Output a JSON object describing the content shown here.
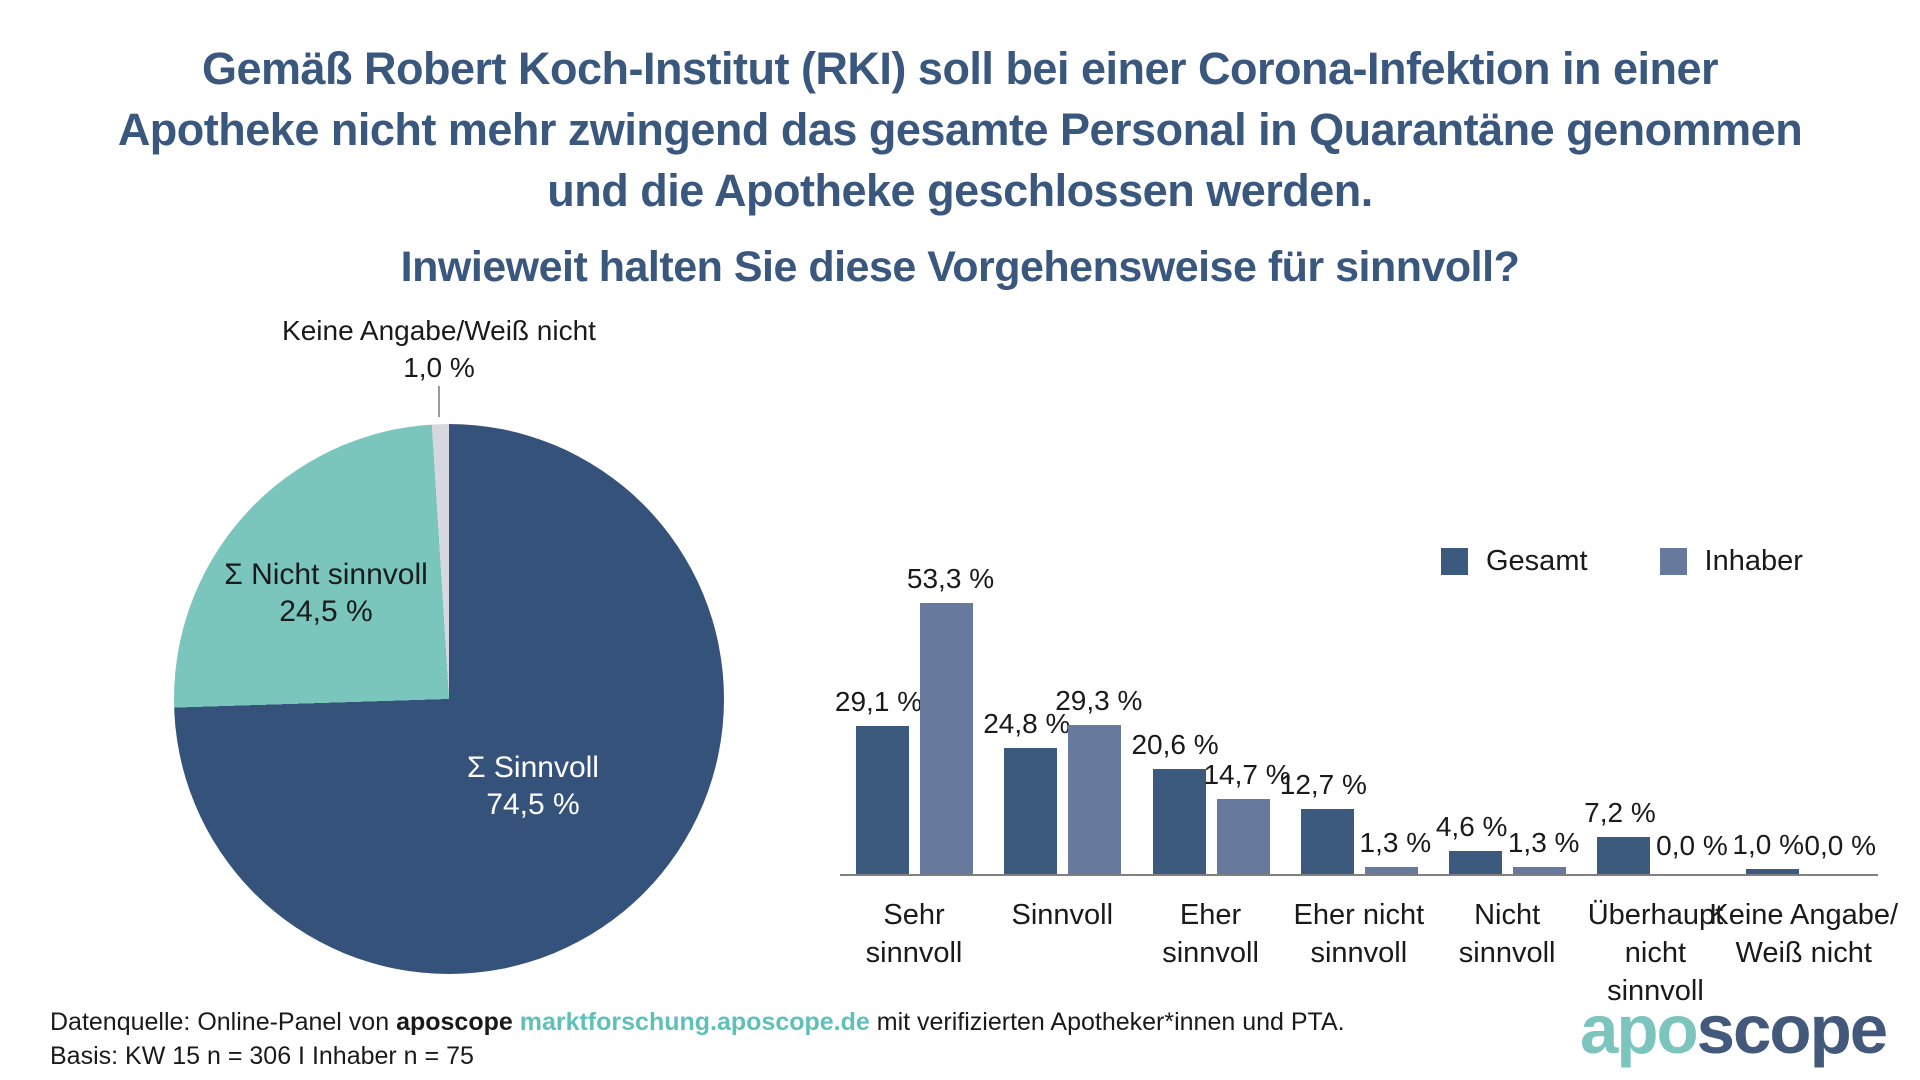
{
  "title": {
    "lines": [
      "Gemäß Robert Koch-Institut (RKI) soll bei einer Corona-Infektion in einer",
      "Apotheke nicht mehr zwingend das gesamte Personal in Quarantäne genommen",
      "und die Apotheke geschlossen werden."
    ]
  },
  "subtitle": "Inwieweit halten Sie diese Vorgehensweise für sinnvoll?",
  "colors": {
    "title_blue": "#3A577D",
    "pie_dark_blue": "#35527A",
    "pie_teal": "#7AC6BD",
    "pie_gray": "#D7D7DF",
    "bar_gesamt": "#3C5A7E",
    "bar_inhaber": "#67799C",
    "axis_gray": "#808080",
    "footer_link_teal": "#5FC0BA",
    "logo_teal": "#7CC5BF",
    "logo_blue": "#43597C"
  },
  "chart_data": [
    {
      "type": "pie",
      "start_angle_deg": 0,
      "direction": "clockwise",
      "slices": [
        {
          "label": "Σ Sinnvoll",
          "value": 74.5,
          "display": "74,5 %",
          "color": "#35527A",
          "text_color": "#ffffff"
        },
        {
          "label": "Σ Nicht sinnvoll",
          "value": 24.5,
          "display": "24,5 %",
          "color": "#7AC6BD",
          "text_color": "#1a1a1a"
        },
        {
          "label": "Keine Angabe/Weiß nicht",
          "value": 1.0,
          "display": "1,0 %",
          "color": "#D7D7DF",
          "text_color": "#1a1a1a"
        }
      ]
    },
    {
      "type": "bar",
      "categories": [
        "Sehr sinnvoll",
        "Sinnvoll",
        "Eher sinnvoll",
        "Eher nicht sinnvoll",
        "Nicht sinnvoll",
        "Überhaupt nicht sinnvoll",
        "Keine Angabe/Weiß nicht"
      ],
      "category_lines": [
        [
          "Sehr",
          "sinnvoll"
        ],
        [
          "Sinnvoll"
        ],
        [
          "Eher",
          "sinnvoll"
        ],
        [
          "Eher nicht",
          "sinnvoll"
        ],
        [
          "Nicht",
          "sinnvoll"
        ],
        [
          "Überhaupt",
          "nicht",
          "sinnvoll"
        ],
        [
          "Keine Angabe/",
          "Weiß nicht"
        ]
      ],
      "series": [
        {
          "name": "Gesamt",
          "color": "#3C5A7E",
          "values": [
            29.1,
            24.8,
            20.6,
            12.7,
            4.6,
            7.2,
            1.0
          ],
          "labels": [
            "29,1 %",
            "24,8 %",
            "20,6 %",
            "12,7 %",
            "4,6 %",
            "7,2 %",
            "1,0 %"
          ]
        },
        {
          "name": "Inhaber",
          "color": "#67799C",
          "values": [
            53.3,
            29.3,
            14.7,
            1.3,
            1.3,
            0.0,
            0.0
          ],
          "labels": [
            "53,3 %",
            "29,3 %",
            "14,7 %",
            "1,3 %",
            "1,3 %",
            "0,0 %",
            "0,0 %"
          ]
        }
      ],
      "ylim": [
        0,
        55
      ],
      "grid": false,
      "legend_position": "top-right"
    }
  ],
  "footer": {
    "line1_prefix": "Datenquelle: Online-Panel von ",
    "line1_brand": "aposcope",
    "line1_space": " ",
    "line1_link": "marktforschung.aposcope.de",
    "line1_suffix": " mit verifizierten Apotheker*innen und PTA.",
    "line2": "Basis: KW 15 n = 306 I Inhaber n = 75"
  },
  "logo": {
    "part1": "apo",
    "part2": "scope"
  }
}
